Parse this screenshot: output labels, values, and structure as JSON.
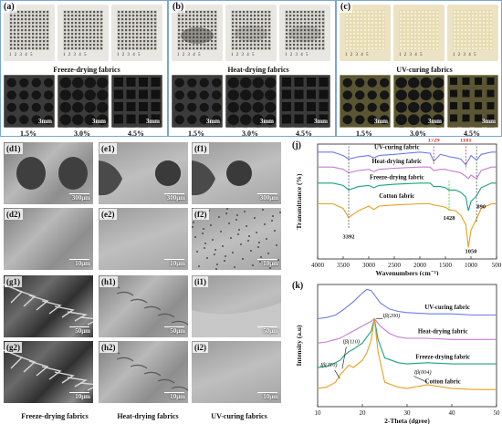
{
  "top_panels": [
    {
      "label": "(a)",
      "caption": "Freeze-drying fabrics",
      "type": "light"
    },
    {
      "label": "(b)",
      "caption": "Heat-drying fabrics",
      "type": "light"
    },
    {
      "label": "(c)",
      "caption": "UV-curing fabrics",
      "type": "cream"
    }
  ],
  "ruler_text": "1  2  3  4  5",
  "percentages": [
    "1.5%",
    "3.0%",
    "4.5%"
  ],
  "scale_3mm": "3mm",
  "sem_panels": [
    {
      "label": "(d1)",
      "scale": "300μm"
    },
    {
      "label": "(e1)",
      "scale": "300μm"
    },
    {
      "label": "(f1)",
      "scale": "300μm"
    },
    {
      "label": "(d2)",
      "scale": "10μm"
    },
    {
      "label": "(e2)",
      "scale": "10μm"
    },
    {
      "label": "(f2)",
      "scale": "10μm"
    },
    {
      "label": "(g1)",
      "scale": "50μm"
    },
    {
      "label": "(h1)",
      "scale": "50μm"
    },
    {
      "label": "(i1)",
      "scale": "50μm"
    },
    {
      "label": "(g2)",
      "scale": "10μm"
    },
    {
      "label": "(h2)",
      "scale": "10μm"
    },
    {
      "label": "(i2)",
      "scale": "10μm"
    }
  ],
  "bottom_captions": [
    "Freeze-drying fabrics",
    "Heat-drying fabrics",
    "UV-curing fabrics"
  ],
  "colors": {
    "uv": "#6b7be8",
    "heat": "#c77ad6",
    "freeze": "#1aa37a",
    "cotton": "#e5a020",
    "peak_red": "#e03030",
    "peak_green": "#33cc33"
  },
  "chart_data": [
    {
      "panel": "(j)",
      "type": "line",
      "xlabel": "Wavenumbers (cm⁻¹)",
      "ylabel": "Transmittance (%)",
      "xlim": [
        4000,
        500
      ],
      "xticks": [
        4000,
        3500,
        3000,
        2500,
        2000,
        1500,
        1000,
        500
      ],
      "series": [
        {
          "name": "UV-curing fabric",
          "x": [
            4000,
            3700,
            3500,
            3392,
            3200,
            3000,
            2900,
            2800,
            2500,
            2000,
            1800,
            1729,
            1600,
            1500,
            1428,
            1300,
            1200,
            1101,
            1050,
            1000,
            890,
            800,
            600,
            500
          ],
          "y": [
            0.93,
            0.93,
            0.9,
            0.87,
            0.89,
            0.9,
            0.88,
            0.9,
            0.91,
            0.93,
            0.92,
            0.85,
            0.91,
            0.9,
            0.89,
            0.88,
            0.87,
            0.82,
            0.86,
            0.9,
            0.86,
            0.91,
            0.93,
            0.93
          ]
        },
        {
          "name": "Heat-drying fabric",
          "x": [
            4000,
            3700,
            3500,
            3392,
            3200,
            3000,
            2900,
            2800,
            2500,
            2000,
            1800,
            1729,
            1600,
            1500,
            1428,
            1300,
            1200,
            1101,
            1050,
            1000,
            890,
            800,
            600,
            500
          ],
          "y": [
            0.8,
            0.8,
            0.78,
            0.75,
            0.77,
            0.78,
            0.76,
            0.78,
            0.79,
            0.8,
            0.8,
            0.77,
            0.78,
            0.78,
            0.77,
            0.76,
            0.75,
            0.72,
            0.7,
            0.73,
            0.7,
            0.77,
            0.8,
            0.8
          ]
        },
        {
          "name": "Freeze-drying fabric",
          "x": [
            4000,
            3700,
            3500,
            3392,
            3200,
            3000,
            2900,
            2800,
            2500,
            2000,
            1800,
            1729,
            1600,
            1500,
            1428,
            1300,
            1200,
            1101,
            1050,
            1000,
            890,
            800,
            600,
            500
          ],
          "y": [
            0.66,
            0.66,
            0.64,
            0.6,
            0.63,
            0.64,
            0.62,
            0.64,
            0.65,
            0.66,
            0.66,
            0.63,
            0.63,
            0.62,
            0.6,
            0.6,
            0.58,
            0.54,
            0.42,
            0.5,
            0.55,
            0.62,
            0.66,
            0.66
          ]
        },
        {
          "name": "Cotton fabric",
          "x": [
            4000,
            3700,
            3500,
            3392,
            3200,
            3000,
            2900,
            2800,
            2500,
            2000,
            1800,
            1729,
            1600,
            1500,
            1428,
            1300,
            1200,
            1101,
            1050,
            1000,
            890,
            800,
            600,
            500
          ],
          "y": [
            0.48,
            0.48,
            0.44,
            0.36,
            0.42,
            0.46,
            0.43,
            0.46,
            0.47,
            0.48,
            0.48,
            0.47,
            0.46,
            0.45,
            0.43,
            0.42,
            0.38,
            0.3,
            0.1,
            0.25,
            0.35,
            0.44,
            0.48,
            0.48
          ]
        }
      ],
      "annotations": [
        "1729",
        "1101",
        "1428",
        "890",
        "3392",
        "1050"
      ]
    },
    {
      "panel": "(k)",
      "type": "line",
      "xlabel": "2-Theta (dgree)",
      "ylabel": "Intensity (a.u)",
      "xlim": [
        10,
        50
      ],
      "xticks": [
        10,
        20,
        30,
        40,
        50
      ],
      "series": [
        {
          "name": "UV-curing fabric",
          "x": [
            10,
            12,
            14,
            16,
            18,
            20,
            21,
            22,
            23,
            24,
            26,
            28,
            30,
            35,
            40,
            45,
            50
          ],
          "y": [
            0.72,
            0.73,
            0.75,
            0.8,
            0.86,
            0.93,
            0.96,
            0.95,
            0.9,
            0.85,
            0.8,
            0.78,
            0.77,
            0.76,
            0.76,
            0.75,
            0.75
          ]
        },
        {
          "name": "Heat-drying fabric",
          "x": [
            10,
            12,
            14,
            15,
            16,
            17,
            18,
            20,
            22,
            22.7,
            24,
            26,
            28,
            30,
            34.5,
            40,
            45,
            50
          ],
          "y": [
            0.52,
            0.53,
            0.55,
            0.56,
            0.58,
            0.6,
            0.62,
            0.66,
            0.7,
            0.72,
            0.66,
            0.6,
            0.57,
            0.56,
            0.56,
            0.55,
            0.55,
            0.55
          ]
        },
        {
          "name": "Freeze-drying fabric",
          "x": [
            10,
            12,
            14,
            15,
            16,
            17,
            18,
            20,
            22,
            22.7,
            23.5,
            25,
            28,
            30,
            34.5,
            40,
            45,
            50
          ],
          "y": [
            0.32,
            0.33,
            0.36,
            0.38,
            0.42,
            0.45,
            0.47,
            0.52,
            0.62,
            0.72,
            0.55,
            0.4,
            0.36,
            0.35,
            0.36,
            0.35,
            0.35,
            0.35
          ]
        },
        {
          "name": "Cotton fabric",
          "x": [
            10,
            12,
            14,
            15,
            16,
            17,
            18,
            20,
            21,
            22,
            22.7,
            23.5,
            25,
            28,
            30,
            34.5,
            40,
            45,
            50
          ],
          "y": [
            0.15,
            0.16,
            0.2,
            0.26,
            0.3,
            0.34,
            0.32,
            0.38,
            0.44,
            0.55,
            0.72,
            0.45,
            0.2,
            0.16,
            0.15,
            0.18,
            0.15,
            0.14,
            0.14
          ]
        }
      ],
      "annotations": [
        "I β(200)",
        "I β(110)",
        "I β(1̄10)",
        "I β(004)"
      ]
    }
  ],
  "ftir_labels": {
    "panel": "(j)",
    "uv": "UV-curing fabric",
    "heat": "Heat-drying fabric",
    "freeze": "Freeze-drying fabric",
    "cotton": "Cotton fabric",
    "p1729": "1729",
    "p1101": "1101",
    "p1428": "1428",
    "p890": "890",
    "p3392": "3392",
    "p1050": "1050",
    "xlabel": "Wavenumbers (cm⁻¹)",
    "ylabel": "Transmittance (%)"
  },
  "xrd_labels": {
    "panel": "(k)",
    "uv": "UV-curing fabric",
    "heat": "Heat-drying fabric",
    "freeze": "Freeze-drying fabric",
    "cotton": "Cotton fabric",
    "i200": "Iβ(200)",
    "i110": "Iβ(110)",
    "i1m10": "Iβ(1̄10)",
    "i004": "Iβ(004)",
    "xlabel": "2-Theta (dgree)",
    "ylabel": "Intensity (a.u)"
  }
}
